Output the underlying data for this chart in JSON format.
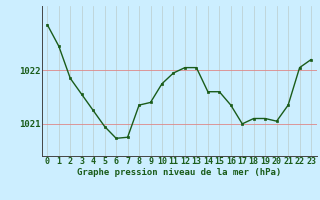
{
  "x": [
    0,
    1,
    2,
    3,
    4,
    5,
    6,
    7,
    8,
    9,
    10,
    11,
    12,
    13,
    14,
    15,
    16,
    17,
    18,
    19,
    20,
    21,
    22,
    23
  ],
  "y": [
    1022.85,
    1022.45,
    1021.85,
    1021.55,
    1021.25,
    1020.95,
    1020.73,
    1020.75,
    1021.35,
    1021.4,
    1021.75,
    1021.95,
    1022.05,
    1022.05,
    1021.6,
    1021.6,
    1021.35,
    1021.0,
    1021.1,
    1021.1,
    1021.05,
    1021.35,
    1022.05,
    1022.2
  ],
  "line_color": "#1a5c1a",
  "marker_color": "#1a5c1a",
  "bg_color": "#cceeff",
  "ylabel_ticks": [
    1021,
    1022
  ],
  "xlabel_label": "Graphe pression niveau de la mer (hPa)",
  "xlabel_fontsize": 6.5,
  "tick_fontsize": 6,
  "ylim": [
    1020.4,
    1023.2
  ],
  "xlim": [
    -0.5,
    23.5
  ]
}
